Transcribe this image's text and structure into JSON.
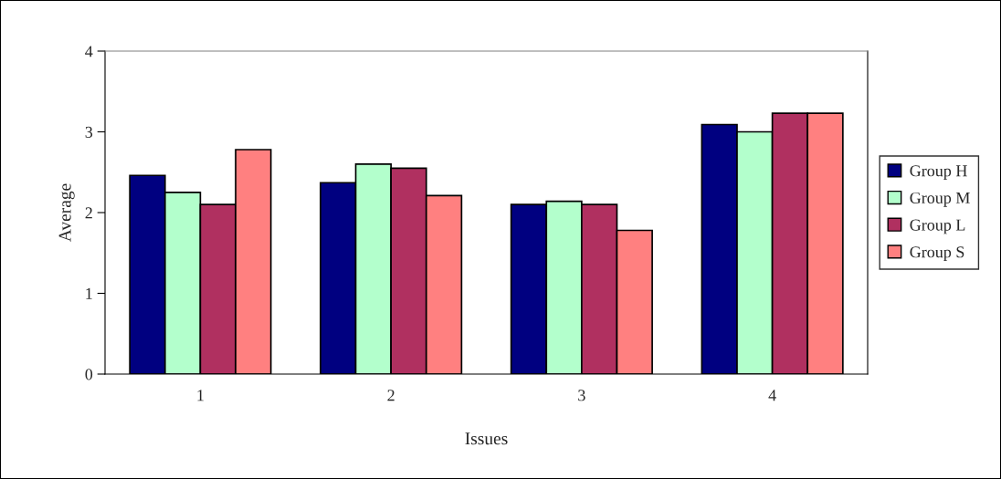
{
  "chart_data": {
    "type": "bar",
    "xlabel": "Issues",
    "ylabel": "Average",
    "categories": [
      "1",
      "2",
      "3",
      "4"
    ],
    "series": [
      {
        "name": "Group H",
        "color": "#000080",
        "values": [
          2.46,
          2.37,
          2.1,
          3.09
        ]
      },
      {
        "name": "Group M",
        "color": "#b3ffcc",
        "values": [
          2.25,
          2.6,
          2.14,
          3.0
        ]
      },
      {
        "name": "Group L",
        "color": "#b03060",
        "values": [
          2.1,
          2.55,
          2.1,
          3.23
        ]
      },
      {
        "name": "Group S",
        "color": "#ff8080",
        "values": [
          2.78,
          2.21,
          1.78,
          3.23
        ]
      }
    ],
    "ylim": [
      0,
      4
    ],
    "yticks": [
      0,
      1,
      2,
      3,
      4
    ],
    "grid": false,
    "legend": "right"
  }
}
